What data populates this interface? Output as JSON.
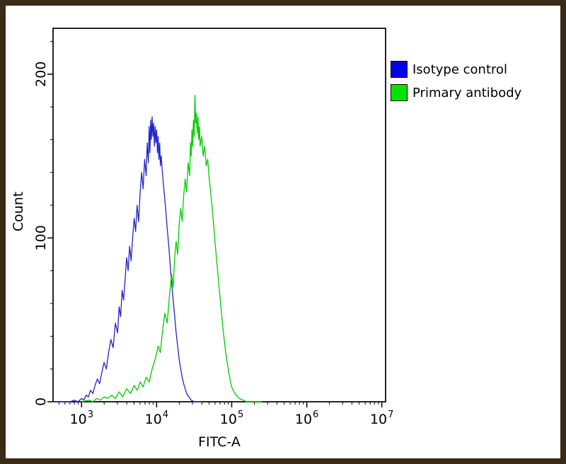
{
  "chart_data": {
    "type": "line",
    "title": "",
    "xlabel": "FITC-A",
    "ylabel": "Count",
    "x_scale": "log10",
    "xlog_range": [
      2.62,
      7.05
    ],
    "xtick_base": "10",
    "xticks_exp": [
      3,
      4,
      5,
      6,
      7
    ],
    "ylim": [
      0,
      228
    ],
    "yticks": [
      0,
      100,
      200
    ],
    "ytick_minor_step": 20,
    "grid": false,
    "legend_position": "top-right",
    "frame_color": "#3a2a18",
    "series": [
      {
        "key": "isotype-control",
        "name": "Isotype control",
        "color": "#2323cc",
        "swatch": "#0000f0",
        "points": [
          [
            2.62,
            0
          ],
          [
            2.85,
            0
          ],
          [
            2.9,
            1
          ],
          [
            2.95,
            0
          ],
          [
            3.0,
            2
          ],
          [
            3.03,
            1
          ],
          [
            3.06,
            4
          ],
          [
            3.09,
            3
          ],
          [
            3.12,
            7
          ],
          [
            3.15,
            5
          ],
          [
            3.18,
            10
          ],
          [
            3.21,
            14
          ],
          [
            3.24,
            11
          ],
          [
            3.27,
            18
          ],
          [
            3.3,
            24
          ],
          [
            3.33,
            20
          ],
          [
            3.36,
            30
          ],
          [
            3.39,
            38
          ],
          [
            3.42,
            33
          ],
          [
            3.45,
            48
          ],
          [
            3.48,
            42
          ],
          [
            3.5,
            58
          ],
          [
            3.52,
            52
          ],
          [
            3.54,
            68
          ],
          [
            3.56,
            62
          ],
          [
            3.58,
            75
          ],
          [
            3.6,
            88
          ],
          [
            3.62,
            80
          ],
          [
            3.64,
            95
          ],
          [
            3.66,
            86
          ],
          [
            3.68,
            100
          ],
          [
            3.7,
            112
          ],
          [
            3.72,
            104
          ],
          [
            3.74,
            120
          ],
          [
            3.76,
            110
          ],
          [
            3.78,
            128
          ],
          [
            3.8,
            140
          ],
          [
            3.82,
            130
          ],
          [
            3.84,
            148
          ],
          [
            3.86,
            138
          ],
          [
            3.875,
            158
          ],
          [
            3.89,
            146
          ],
          [
            3.9,
            168
          ],
          [
            3.91,
            152
          ],
          [
            3.92,
            172
          ],
          [
            3.93,
            160
          ],
          [
            3.94,
            174
          ],
          [
            3.95,
            162
          ],
          [
            3.96,
            170
          ],
          [
            3.97,
            156
          ],
          [
            3.98,
            168
          ],
          [
            3.99,
            158
          ],
          [
            4.0,
            166
          ],
          [
            4.01,
            152
          ],
          [
            4.02,
            162
          ],
          [
            4.03,
            148
          ],
          [
            4.04,
            158
          ],
          [
            4.05,
            144
          ],
          [
            4.06,
            150
          ],
          [
            4.08,
            138
          ],
          [
            4.1,
            128
          ],
          [
            4.12,
            118
          ],
          [
            4.14,
            106
          ],
          [
            4.16,
            96
          ],
          [
            4.18,
            84
          ],
          [
            4.2,
            72
          ],
          [
            4.22,
            62
          ],
          [
            4.24,
            52
          ],
          [
            4.26,
            42
          ],
          [
            4.28,
            34
          ],
          [
            4.3,
            26
          ],
          [
            4.32,
            20
          ],
          [
            4.34,
            15
          ],
          [
            4.36,
            11
          ],
          [
            4.38,
            8
          ],
          [
            4.4,
            5
          ],
          [
            4.43,
            3
          ],
          [
            4.46,
            1
          ],
          [
            4.5,
            0
          ],
          [
            4.6,
            0
          ]
        ]
      },
      {
        "key": "primary-antibody",
        "name": "Primary antibody",
        "color": "#00cc00",
        "swatch": "#00e400",
        "points": [
          [
            3.0,
            0
          ],
          [
            3.1,
            1
          ],
          [
            3.15,
            0
          ],
          [
            3.2,
            2
          ],
          [
            3.25,
            1
          ],
          [
            3.3,
            3
          ],
          [
            3.35,
            2
          ],
          [
            3.4,
            4
          ],
          [
            3.45,
            2
          ],
          [
            3.5,
            6
          ],
          [
            3.55,
            3
          ],
          [
            3.6,
            8
          ],
          [
            3.65,
            5
          ],
          [
            3.7,
            10
          ],
          [
            3.74,
            7
          ],
          [
            3.78,
            12
          ],
          [
            3.82,
            9
          ],
          [
            3.86,
            15
          ],
          [
            3.9,
            12
          ],
          [
            3.94,
            20
          ],
          [
            3.98,
            26
          ],
          [
            4.02,
            34
          ],
          [
            4.05,
            30
          ],
          [
            4.08,
            44
          ],
          [
            4.11,
            54
          ],
          [
            4.14,
            48
          ],
          [
            4.17,
            64
          ],
          [
            4.2,
            78
          ],
          [
            4.22,
            70
          ],
          [
            4.24,
            88
          ],
          [
            4.26,
            98
          ],
          [
            4.28,
            90
          ],
          [
            4.3,
            108
          ],
          [
            4.32,
            118
          ],
          [
            4.34,
            110
          ],
          [
            4.36,
            126
          ],
          [
            4.38,
            136
          ],
          [
            4.4,
            128
          ],
          [
            4.42,
            146
          ],
          [
            4.44,
            138
          ],
          [
            4.45,
            158
          ],
          [
            4.46,
            150
          ],
          [
            4.47,
            166
          ],
          [
            4.48,
            156
          ],
          [
            4.49,
            172
          ],
          [
            4.5,
            162
          ],
          [
            4.51,
            187
          ],
          [
            4.52,
            170
          ],
          [
            4.53,
            176
          ],
          [
            4.54,
            164
          ],
          [
            4.55,
            174
          ],
          [
            4.56,
            160
          ],
          [
            4.57,
            168
          ],
          [
            4.58,
            156
          ],
          [
            4.6,
            162
          ],
          [
            4.62,
            150
          ],
          [
            4.64,
            156
          ],
          [
            4.66,
            144
          ],
          [
            4.68,
            148
          ],
          [
            4.7,
            136
          ],
          [
            4.72,
            128
          ],
          [
            4.74,
            118
          ],
          [
            4.76,
            108
          ],
          [
            4.78,
            96
          ],
          [
            4.8,
            86
          ],
          [
            4.82,
            76
          ],
          [
            4.84,
            66
          ],
          [
            4.86,
            56
          ],
          [
            4.88,
            46
          ],
          [
            4.9,
            38
          ],
          [
            4.92,
            30
          ],
          [
            4.94,
            24
          ],
          [
            4.96,
            18
          ],
          [
            4.98,
            13
          ],
          [
            5.0,
            9
          ],
          [
            5.03,
            6
          ],
          [
            5.06,
            4
          ],
          [
            5.1,
            2
          ],
          [
            5.15,
            1
          ],
          [
            5.2,
            0
          ],
          [
            5.4,
            0
          ]
        ]
      }
    ]
  }
}
